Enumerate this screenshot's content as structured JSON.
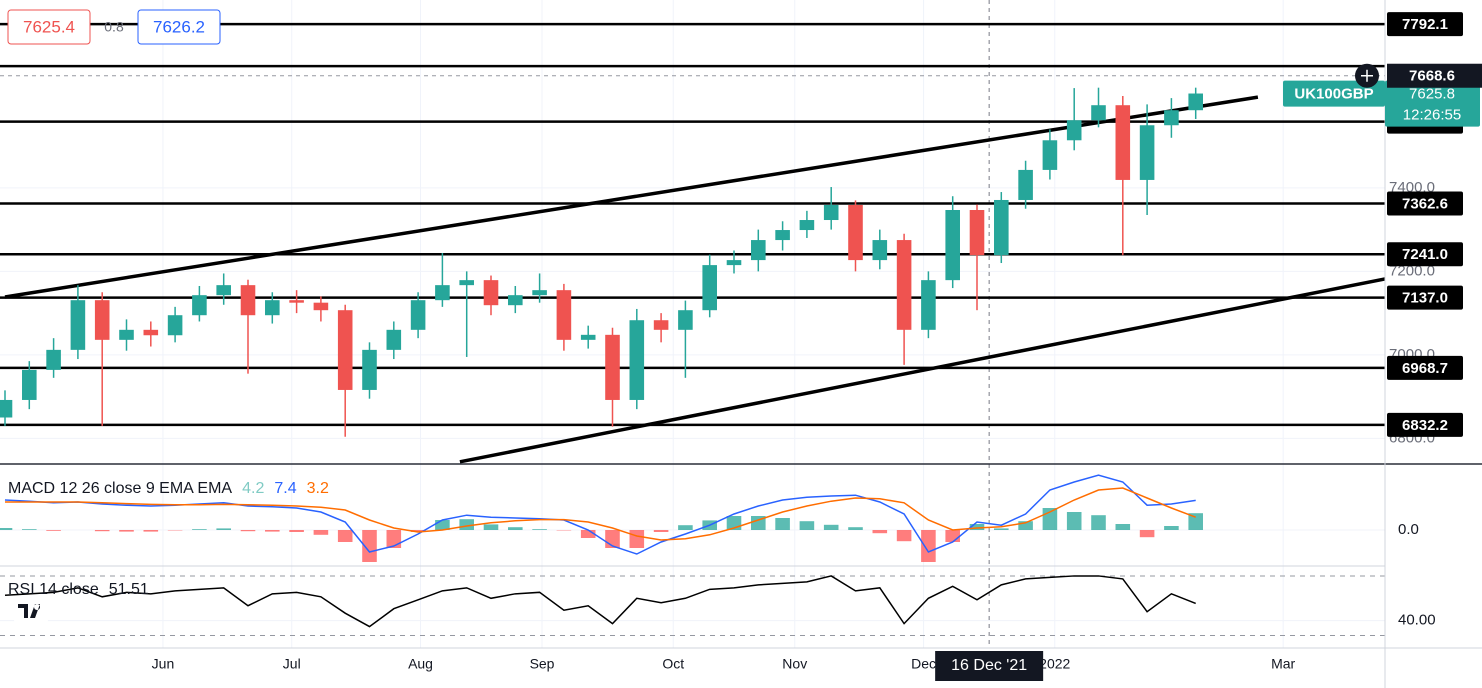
{
  "chart_data": [
    {
      "type": "candlestick",
      "symbol": "UK100GBP",
      "last_price": 7625.8,
      "countdown": "12:26:55",
      "quote": {
        "bid": 7625.4,
        "spread": 0.8,
        "ask": 7626.2
      },
      "up_color": "#26a69a",
      "down_color": "#ef5350",
      "ohlc": [
        [
          6850,
          6915,
          6830,
          6892
        ],
        [
          6892,
          6985,
          6870,
          6964
        ],
        [
          6964,
          7040,
          6945,
          7012
        ],
        [
          7012,
          7167,
          6990,
          7131
        ],
        [
          7131,
          7150,
          6830,
          7036
        ],
        [
          7036,
          7085,
          7010,
          7060
        ],
        [
          7060,
          7080,
          7020,
          7047
        ],
        [
          7047,
          7115,
          7030,
          7095
        ],
        [
          7095,
          7165,
          7080,
          7143
        ],
        [
          7143,
          7195,
          7120,
          7167
        ],
        [
          7167,
          7180,
          6955,
          7095
        ],
        [
          7095,
          7150,
          7075,
          7131
        ],
        [
          7131,
          7155,
          7100,
          7125
        ],
        [
          7125,
          7140,
          7080,
          7107
        ],
        [
          7107,
          7120,
          6804,
          6916
        ],
        [
          6916,
          7030,
          6895,
          7012
        ],
        [
          7012,
          7080,
          6990,
          7060
        ],
        [
          7060,
          7150,
          7040,
          7131
        ],
        [
          7131,
          7244,
          7115,
          7167
        ],
        [
          7167,
          7200,
          6995,
          7179
        ],
        [
          7179,
          7190,
          7095,
          7119
        ],
        [
          7119,
          7165,
          7100,
          7143
        ],
        [
          7143,
          7195,
          7125,
          7155
        ],
        [
          7155,
          7170,
          7010,
          7036
        ],
        [
          7036,
          7070,
          7015,
          7048
        ],
        [
          7048,
          7065,
          6828,
          6892
        ],
        [
          6892,
          7110,
          6870,
          7083
        ],
        [
          7083,
          7100,
          7030,
          7060
        ],
        [
          7060,
          7130,
          6945,
          7107
        ],
        [
          7107,
          7240,
          7090,
          7215
        ],
        [
          7215,
          7250,
          7195,
          7227
        ],
        [
          7227,
          7300,
          7200,
          7275
        ],
        [
          7275,
          7320,
          7250,
          7299
        ],
        [
          7299,
          7345,
          7280,
          7323
        ],
        [
          7323,
          7402,
          7300,
          7359
        ],
        [
          7359,
          7370,
          7200,
          7227
        ],
        [
          7227,
          7300,
          7205,
          7275
        ],
        [
          7275,
          7290,
          6976,
          7060
        ],
        [
          7060,
          7200,
          7040,
          7179
        ],
        [
          7179,
          7380,
          7160,
          7347
        ],
        [
          7347,
          7360,
          7107,
          7239
        ],
        [
          7239,
          7390,
          7220,
          7371
        ],
        [
          7371,
          7465,
          7350,
          7443
        ],
        [
          7443,
          7540,
          7420,
          7514
        ],
        [
          7514,
          7639,
          7490,
          7562
        ],
        [
          7562,
          7640,
          7545,
          7598
        ],
        [
          7598,
          7620,
          7239,
          7419
        ],
        [
          7419,
          7600,
          7335,
          7550
        ],
        [
          7550,
          7615,
          7520,
          7586
        ],
        [
          7586,
          7640,
          7565,
          7626
        ]
      ],
      "xlim": [
        0,
        56.79
      ],
      "xticks": [
        {
          "value": 6.5,
          "label": "Jun"
        },
        {
          "value": 11.8,
          "label": "Jul"
        },
        {
          "value": 17.1,
          "label": "Aug"
        },
        {
          "value": 22.1,
          "label": "Sep"
        },
        {
          "value": 27.5,
          "label": "Oct"
        },
        {
          "value": 32.5,
          "label": "Nov"
        },
        {
          "value": 37.8,
          "label": "Dec"
        },
        {
          "value": 43.2,
          "label": "2022"
        },
        {
          "value": 52.6,
          "label": "Mar"
        }
      ],
      "ylim": [
        6741,
        7850
      ],
      "yticks": [
        {
          "value": 7400,
          "label": "7400.0"
        },
        {
          "value": 7200,
          "label": "7200.0"
        },
        {
          "value": 7000,
          "label": "7000.0"
        },
        {
          "value": 6800,
          "label": "6800.0"
        }
      ],
      "levels": [
        7792.1,
        7558.7,
        7362.6,
        {
          "value": 7241,
          "label": "7241.0"
        },
        {
          "value": 7137,
          "label": "7137.0"
        },
        6968.7,
        6832.2
      ],
      "lines": [
        7691.5
      ],
      "trendlines": [
        [
          [
            0,
            7138.7
          ],
          [
            51.56,
            7617.4
          ]
        ],
        [
          [
            18.72,
            6743.8
          ],
          [
            56.79,
            7181.8
          ]
        ]
      ],
      "crosshair": {
        "x": 40.5,
        "x_label": "16 Dec '21",
        "y": 7668.6
      }
    },
    {
      "type": "macd",
      "title": "MACD 12 26 close 9 EMA EMA",
      "ylim": [
        -8.75,
        16.25
      ],
      "yticks": [
        {
          "value": 0,
          "label": "0.0"
        }
      ],
      "series": [
        {
          "color": "#26a69a",
          "negative_color": "#ff5252",
          "values": [
            0.5,
            0.2,
            -0.2,
            0,
            -0.3,
            -0.4,
            -0.4,
            -0.1,
            0.2,
            0.4,
            -0.3,
            -0.4,
            -0.5,
            -1.2,
            -3,
            -8,
            -4.5,
            -0.5,
            2.5,
            2.7,
            1.4,
            0.7,
            0.2,
            -0.1,
            -2,
            -4.5,
            -4.5,
            -0.5,
            1.2,
            2.4,
            3.5,
            3.5,
            3,
            2.2,
            1.3,
            0.7,
            -0.8,
            -2.8,
            -8,
            -3,
            1.5,
            0.4,
            2.2,
            5.5,
            4.5,
            3.7,
            1.5,
            -1.8,
            1,
            4.2
          ]
        },
        {
          "color": "#2962ff",
          "values": [
            7.5,
            7.2,
            6.8,
            7,
            6.5,
            6.2,
            6,
            6.2,
            6.5,
            6.8,
            6,
            5.8,
            5.5,
            4.5,
            2,
            -5.5,
            -4,
            -1,
            2.5,
            3.7,
            3.2,
            3,
            2.8,
            2.5,
            0,
            -4,
            -6,
            -3,
            -1,
            1.2,
            4,
            6,
            7.5,
            8.2,
            8.5,
            8.7,
            7,
            4,
            -5.5,
            -3,
            2,
            1.2,
            4,
            10,
            12,
            13.7,
            12,
            6.2,
            6.5,
            7.4
          ]
        },
        {
          "color": "#ff6d00",
          "values": [
            7,
            7,
            7,
            7,
            6.8,
            6.6,
            6.4,
            6.3,
            6.3,
            6.4,
            6.3,
            6.2,
            6,
            5.7,
            5,
            2.5,
            0.5,
            -0.5,
            0,
            1,
            1.8,
            2.3,
            2.6,
            2.6,
            2,
            0.5,
            -1.5,
            -2.5,
            -2.2,
            -1.2,
            0.5,
            2.5,
            4.5,
            6,
            7.2,
            8,
            7.8,
            6.8,
            2.5,
            0,
            0.5,
            0.8,
            1.8,
            4.5,
            7.5,
            10,
            10.5,
            8,
            5.5,
            3.2
          ]
        }
      ]
    },
    {
      "type": "rsi",
      "title": "RSI 14 close",
      "ylim": [
        27,
        76
      ],
      "yticks": [
        {
          "value": 40,
          "label": "40.00"
        }
      ],
      "bands": [
        70,
        30
      ],
      "series": [
        {
          "color": "#000000",
          "values": [
            57,
            58,
            59,
            62,
            56,
            59,
            58,
            60,
            61,
            62,
            50,
            58,
            59,
            56,
            45,
            36,
            48,
            54,
            60,
            62,
            55,
            58,
            59,
            47,
            50,
            38,
            55,
            52,
            55,
            61,
            62,
            64,
            65,
            66,
            70,
            60,
            62,
            38,
            55,
            63,
            54,
            64,
            68,
            69,
            70,
            70,
            68,
            46,
            58,
            51.51
          ]
        }
      ]
    }
  ]
}
